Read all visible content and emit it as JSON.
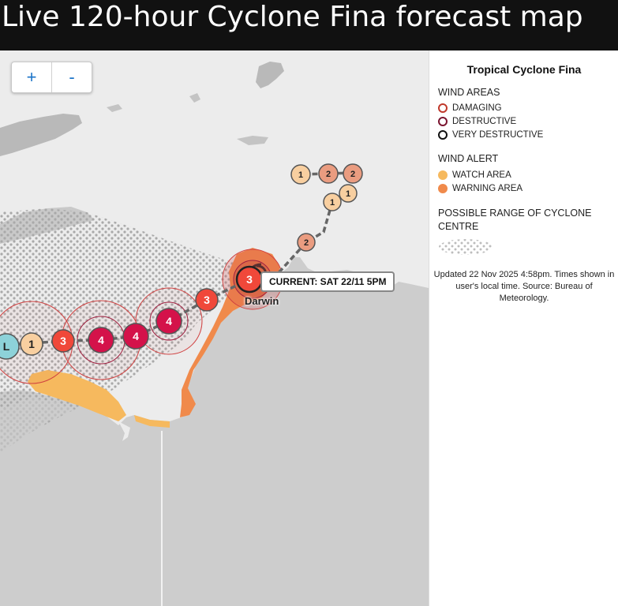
{
  "title": "Live 120-hour Cyclone Fina forecast map",
  "zoom": {
    "in_label": "+",
    "out_label": "-"
  },
  "map": {
    "current_label": "CURRENT: SAT 22/11 5PM",
    "place_label": "Darwin",
    "colors": {
      "land": "#ececec",
      "ocean": "#cdcdcd",
      "island": "#b9b9b9",
      "watch": "#f6b95e",
      "warning": "#f08a4b",
      "cat1": "#f8cfa0",
      "cat2": "#ea9c80",
      "cat3": "#f0483a",
      "cat4": "#d4124a",
      "low": "#8dd2d9"
    },
    "track_markers": [
      {
        "label": "L",
        "category": "low"
      },
      {
        "label": "1",
        "category": "1"
      },
      {
        "label": "3",
        "category": "3"
      },
      {
        "label": "4",
        "category": "4"
      },
      {
        "label": "4",
        "category": "4"
      },
      {
        "label": "4",
        "category": "4"
      },
      {
        "label": "3",
        "category": "3"
      },
      {
        "label": "3",
        "category": "3",
        "current": true
      },
      {
        "label": "2",
        "category": "2"
      },
      {
        "label": "1",
        "category": "1"
      },
      {
        "label": "1",
        "category": "1"
      },
      {
        "label": "2",
        "category": "2"
      },
      {
        "label": "2",
        "category": "2"
      },
      {
        "label": "1",
        "category": "1"
      }
    ]
  },
  "legend": {
    "title": "Tropical Cyclone Fina",
    "wind_areas_title": "WIND AREAS",
    "wind_areas": [
      {
        "label": "DAMAGING",
        "color": "#c0392b"
      },
      {
        "label": "DESTRUCTIVE",
        "color": "#7b1530"
      },
      {
        "label": "VERY DESTRUCTIVE",
        "color": "#111111"
      }
    ],
    "wind_alert_title": "WIND ALERT",
    "wind_alerts": [
      {
        "label": "WATCH AREA",
        "color": "#f6b95e"
      },
      {
        "label": "WARNING AREA",
        "color": "#f08a4b"
      }
    ],
    "range_title": "POSSIBLE RANGE OF CYCLONE CENTRE",
    "note": "Updated 22 Nov 2025 4:58pm. Times shown in user's local time. Source: Bureau of Meteorology."
  }
}
